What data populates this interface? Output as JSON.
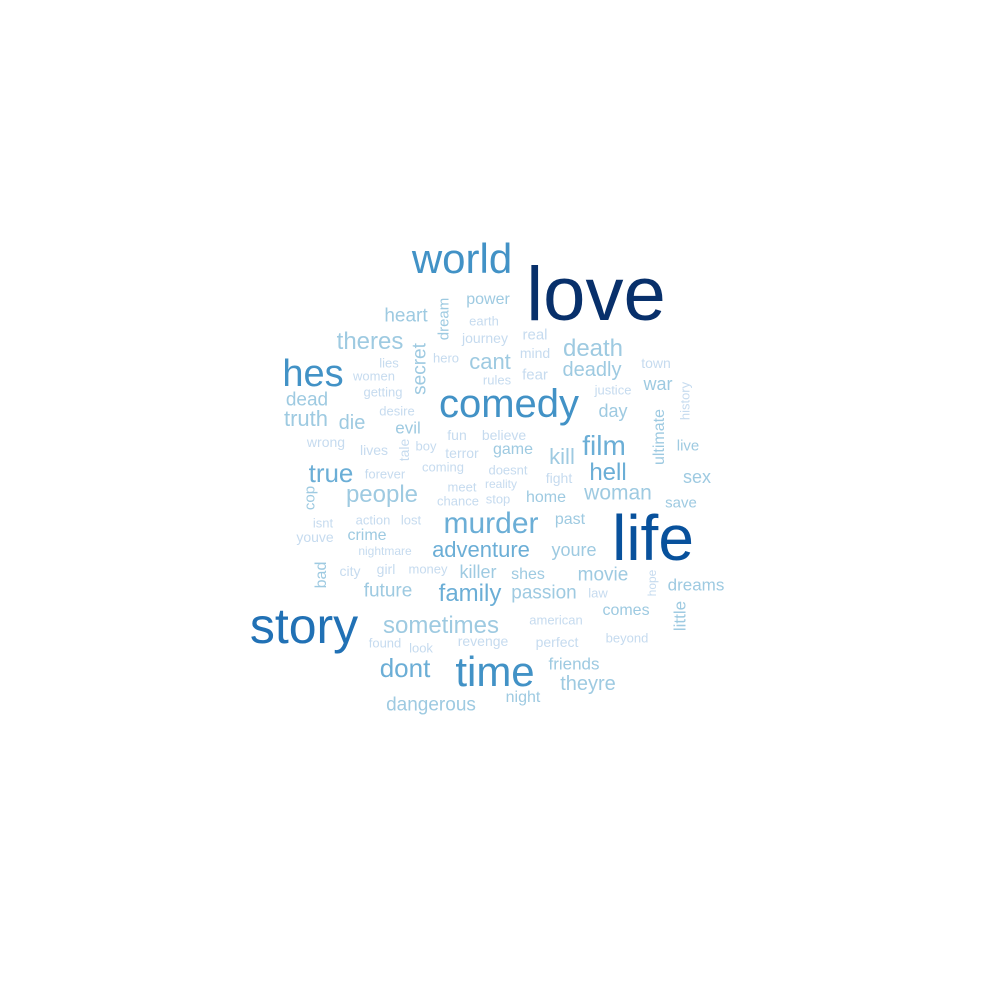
{
  "palette": {
    "c1": "#08306b",
    "c2": "#08519c",
    "c3": "#2171b5",
    "c4": "#4292c6",
    "c5": "#6baed6",
    "c6": "#9ecae1",
    "c7": "#c6dbef"
  },
  "words": [
    {
      "text": "love",
      "color": "c1"
    },
    {
      "text": "life",
      "color": "c2"
    },
    {
      "text": "story",
      "color": "c3"
    },
    {
      "text": "time",
      "color": "c4"
    },
    {
      "text": "world",
      "color": "c4"
    },
    {
      "text": "comedy",
      "color": "c4"
    },
    {
      "text": "hes",
      "color": "c4"
    },
    {
      "text": "murder",
      "color": "c5"
    },
    {
      "text": "film",
      "color": "c5"
    },
    {
      "text": "dont",
      "color": "c5"
    },
    {
      "text": "adventure",
      "color": "c5"
    },
    {
      "text": "family",
      "color": "c5"
    },
    {
      "text": "sometimes",
      "color": "c6"
    },
    {
      "text": "death",
      "color": "c6"
    },
    {
      "text": "true",
      "color": "c5"
    },
    {
      "text": "hell",
      "color": "c5"
    },
    {
      "text": "people",
      "color": "c6"
    },
    {
      "text": "theres",
      "color": "c6"
    },
    {
      "text": "kill",
      "color": "c6"
    },
    {
      "text": "woman",
      "color": "c6"
    },
    {
      "text": "cant",
      "color": "c6"
    },
    {
      "text": "deadly",
      "color": "c6"
    },
    {
      "text": "secret",
      "color": "c6"
    },
    {
      "text": "truth",
      "color": "c6"
    },
    {
      "text": "killer",
      "color": "c6"
    },
    {
      "text": "movie",
      "color": "c6"
    },
    {
      "text": "future",
      "color": "c6"
    },
    {
      "text": "passion",
      "color": "c6"
    },
    {
      "text": "youre",
      "color": "c6"
    },
    {
      "text": "theyre",
      "color": "c6"
    },
    {
      "text": "dangerous",
      "color": "c6"
    },
    {
      "text": "friends",
      "color": "c6"
    },
    {
      "text": "dreams",
      "color": "c6"
    },
    {
      "text": "dead",
      "color": "c6"
    },
    {
      "text": "die",
      "color": "c6"
    },
    {
      "text": "heart",
      "color": "c6"
    },
    {
      "text": "war",
      "color": "c6"
    },
    {
      "text": "day",
      "color": "c6"
    },
    {
      "text": "sex",
      "color": "c6"
    },
    {
      "text": "evil",
      "color": "c6"
    },
    {
      "text": "past",
      "color": "c6"
    },
    {
      "text": "home",
      "color": "c6"
    },
    {
      "text": "shes",
      "color": "c6"
    },
    {
      "text": "comes",
      "color": "c6"
    },
    {
      "text": "power",
      "color": "c6"
    },
    {
      "text": "crime",
      "color": "c6"
    },
    {
      "text": "game",
      "color": "c6"
    },
    {
      "text": "little",
      "color": "c6"
    },
    {
      "text": "ultimate",
      "color": "c6"
    },
    {
      "text": "live",
      "color": "c6"
    },
    {
      "text": "save",
      "color": "c6"
    },
    {
      "text": "cop",
      "color": "c6"
    },
    {
      "text": "bad",
      "color": "c6"
    },
    {
      "text": "night",
      "color": "c6"
    },
    {
      "text": "dream",
      "color": "c6"
    },
    {
      "text": "tale",
      "color": "c7"
    },
    {
      "text": "fear",
      "color": "c7"
    },
    {
      "text": "mind",
      "color": "c7"
    },
    {
      "text": "real",
      "color": "c7"
    },
    {
      "text": "journey",
      "color": "c7"
    },
    {
      "text": "earth",
      "color": "c7"
    },
    {
      "text": "hero",
      "color": "c7"
    },
    {
      "text": "rules",
      "color": "c7"
    },
    {
      "text": "lies",
      "color": "c7"
    },
    {
      "text": "women",
      "color": "c7"
    },
    {
      "text": "getting",
      "color": "c7"
    },
    {
      "text": "desire",
      "color": "c7"
    },
    {
      "text": "wrong",
      "color": "c7"
    },
    {
      "text": "lives",
      "color": "c7"
    },
    {
      "text": "boy",
      "color": "c7"
    },
    {
      "text": "fun",
      "color": "c7"
    },
    {
      "text": "believe",
      "color": "c7"
    },
    {
      "text": "terror",
      "color": "c7"
    },
    {
      "text": "forever",
      "color": "c7"
    },
    {
      "text": "coming",
      "color": "c7"
    },
    {
      "text": "doesnt",
      "color": "c7"
    },
    {
      "text": "fight",
      "color": "c7"
    },
    {
      "text": "meet",
      "color": "c7"
    },
    {
      "text": "reality",
      "color": "c7"
    },
    {
      "text": "chance",
      "color": "c7"
    },
    {
      "text": "stop",
      "color": "c7"
    },
    {
      "text": "isnt",
      "color": "c7"
    },
    {
      "text": "action",
      "color": "c7"
    },
    {
      "text": "lost",
      "color": "c7"
    },
    {
      "text": "youve",
      "color": "c7"
    },
    {
      "text": "nightmare",
      "color": "c7"
    },
    {
      "text": "city",
      "color": "c7"
    },
    {
      "text": "girl",
      "color": "c7"
    },
    {
      "text": "money",
      "color": "c7"
    },
    {
      "text": "hope",
      "color": "c7"
    },
    {
      "text": "law",
      "color": "c7"
    },
    {
      "text": "american",
      "color": "c7"
    },
    {
      "text": "revenge",
      "color": "c7"
    },
    {
      "text": "perfect",
      "color": "c7"
    },
    {
      "text": "beyond",
      "color": "c7"
    },
    {
      "text": "found",
      "color": "c7"
    },
    {
      "text": "look",
      "color": "c7"
    },
    {
      "text": "town",
      "color": "c7"
    },
    {
      "text": "justice",
      "color": "c7"
    },
    {
      "text": "history",
      "color": "c7"
    }
  ]
}
